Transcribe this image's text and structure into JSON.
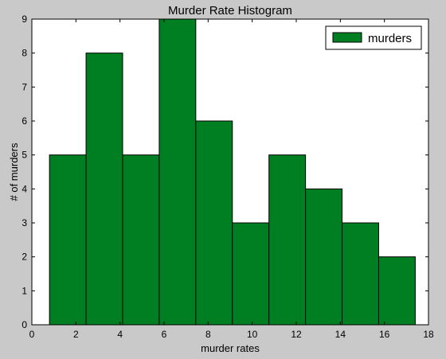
{
  "chart_data": {
    "type": "histogram",
    "title": "Murder Rate Histogram",
    "xlabel": "murder rates",
    "ylabel": "# of murders",
    "xlim": [
      0,
      18
    ],
    "ylim": [
      0,
      9
    ],
    "xticks": [
      0,
      2,
      4,
      6,
      8,
      10,
      12,
      14,
      16,
      18
    ],
    "yticks": [
      0,
      1,
      2,
      3,
      4,
      5,
      6,
      7,
      8,
      9
    ],
    "grid": false,
    "legend_position": "top-right",
    "series": [
      {
        "name": "murders",
        "color": "#007f22",
        "bins": [
          {
            "x0": 0.8,
            "x1": 2.46,
            "count": 5
          },
          {
            "x0": 2.46,
            "x1": 4.12,
            "count": 8
          },
          {
            "x0": 4.12,
            "x1": 5.78,
            "count": 5
          },
          {
            "x0": 5.78,
            "x1": 7.44,
            "count": 9
          },
          {
            "x0": 7.44,
            "x1": 9.1,
            "count": 6
          },
          {
            "x0": 9.1,
            "x1": 10.76,
            "count": 3
          },
          {
            "x0": 10.76,
            "x1": 12.42,
            "count": 5
          },
          {
            "x0": 12.42,
            "x1": 14.08,
            "count": 4
          },
          {
            "x0": 14.08,
            "x1": 15.74,
            "count": 3
          },
          {
            "x0": 15.74,
            "x1": 17.4,
            "count": 2
          }
        ]
      }
    ]
  }
}
